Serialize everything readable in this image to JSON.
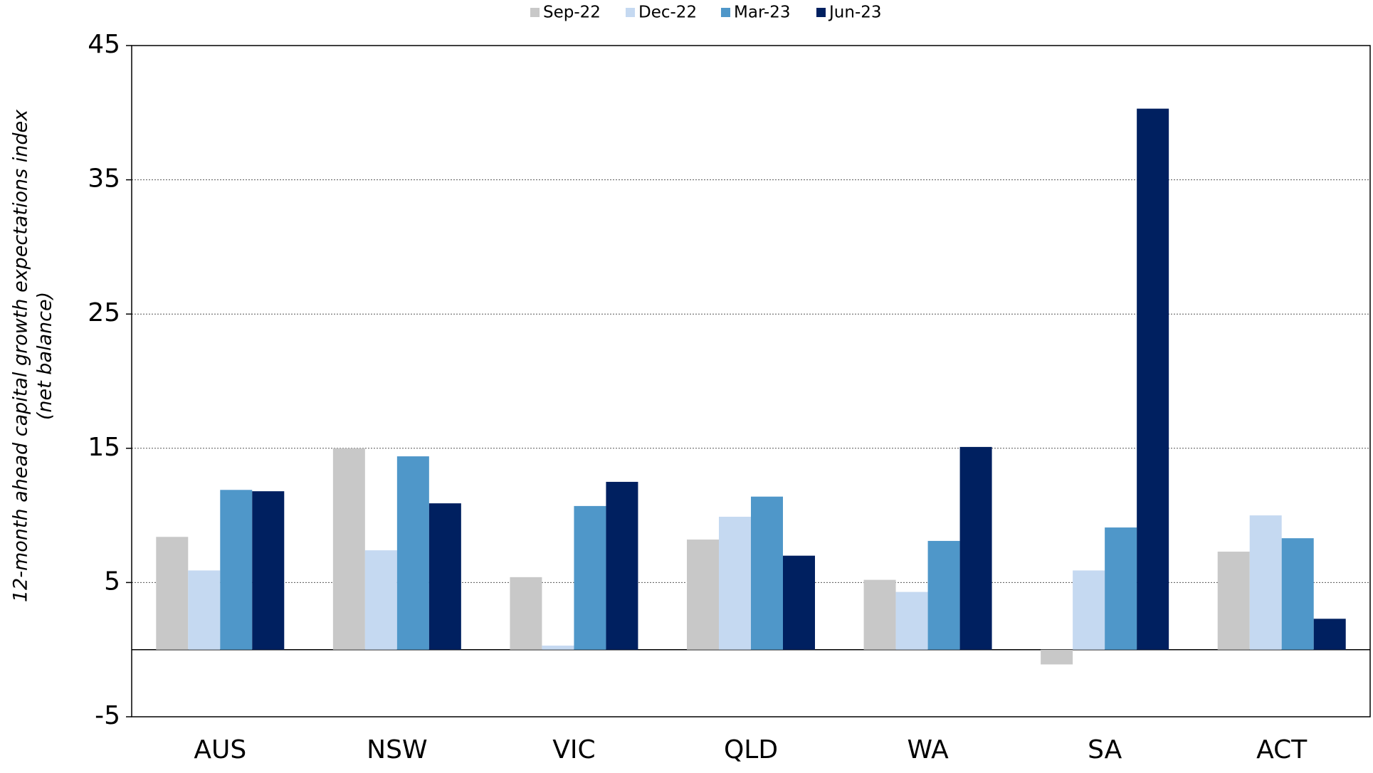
{
  "chart_data": {
    "type": "bar",
    "ylabel": [
      "12-month ahead capital growth expectations index",
      "(net balance)"
    ],
    "categories": [
      "AUS",
      "NSW",
      "VIC",
      "QLD",
      "WA",
      "SA",
      "ACT"
    ],
    "series": [
      {
        "name": "Sep-22",
        "color": "#c8c8c8",
        "values": [
          8.4,
          15.0,
          5.4,
          8.2,
          5.2,
          -1.1,
          7.3
        ]
      },
      {
        "name": "Dec-22",
        "color": "#c5d9f1",
        "values": [
          5.9,
          7.4,
          0.3,
          9.9,
          4.3,
          5.9,
          10.0
        ]
      },
      {
        "name": "Mar-23",
        "color": "#4f97c9",
        "values": [
          11.9,
          14.4,
          10.7,
          11.4,
          8.1,
          9.1,
          8.3
        ]
      },
      {
        "name": "Jun-23",
        "color": "#002060",
        "values": [
          11.8,
          10.9,
          12.5,
          7.0,
          15.1,
          40.3,
          2.3
        ]
      }
    ],
    "ylim": [
      -5,
      45
    ],
    "yticks": [
      -5,
      5,
      15,
      25,
      35,
      45
    ],
    "grid": true,
    "legend": "top"
  }
}
